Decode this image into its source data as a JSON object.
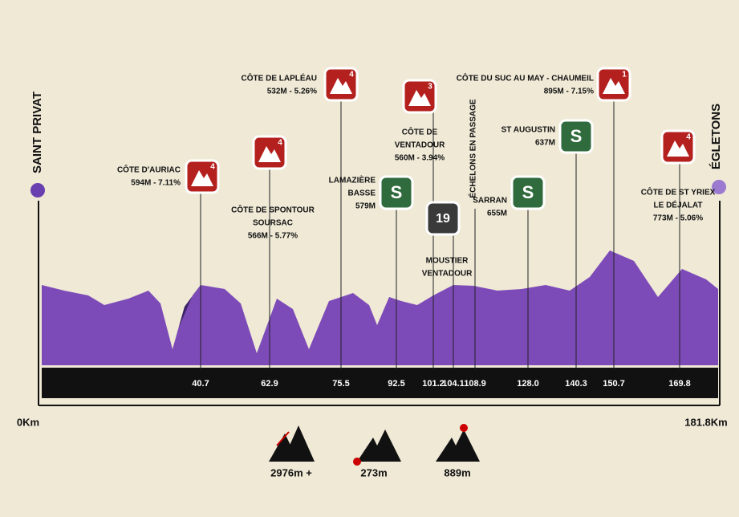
{
  "start": {
    "name": "SAINT PRIVAT",
    "km": "0Km"
  },
  "finish": {
    "name": "ÉGLETONS",
    "km": "181.8Km"
  },
  "points": [
    {
      "lines": [
        "CÔTE D'AURIAC",
        "594M - 7.11%"
      ],
      "sign": "4",
      "km": "40.7"
    },
    {
      "lines": [
        "CÔTE DE SPONTOUR",
        "SOURSAC",
        "566M - 5.77%"
      ],
      "sign": "4",
      "km": "62.9"
    },
    {
      "lines": [
        "CÔTE DE LAPLÉAU",
        "532M - 5.26%"
      ],
      "sign": "4",
      "km": "75.5"
    },
    {
      "lines": [
        "LAMAZIÈRE",
        "BASSE",
        "579M"
      ],
      "sign": "S",
      "km": "92.5"
    },
    {
      "lines": [
        "CÔTE DE",
        "VENTADOUR",
        "560M - 3.94%"
      ],
      "sign": "3",
      "km": "101.2"
    },
    {
      "lines": [
        "MOUSTIER",
        "VENTADOUR"
      ],
      "sign": "19",
      "km": "104.1"
    },
    {
      "lines": [
        "ÉCHELONS EN PASSAGE"
      ],
      "km": "108.9"
    },
    {
      "lines": [
        "SARRAN",
        "655M"
      ],
      "sign": "S",
      "km": "128.0"
    },
    {
      "lines": [
        "ST AUGUSTIN",
        "637M"
      ],
      "sign": "S",
      "km": "140.3"
    },
    {
      "lines": [
        "CÔTE DU SUC AU MAY - CHAUMEIL",
        "895M - 7.15%"
      ],
      "sign": "1",
      "km": "150.7"
    },
    {
      "lines": [
        "CÔTE DE ST YRIEX",
        "LE DÉJALAT",
        "773M - 5.06%"
      ],
      "sign": "4",
      "km": "169.8"
    }
  ],
  "stats": [
    "2976m +",
    "273m",
    "889m"
  ]
}
